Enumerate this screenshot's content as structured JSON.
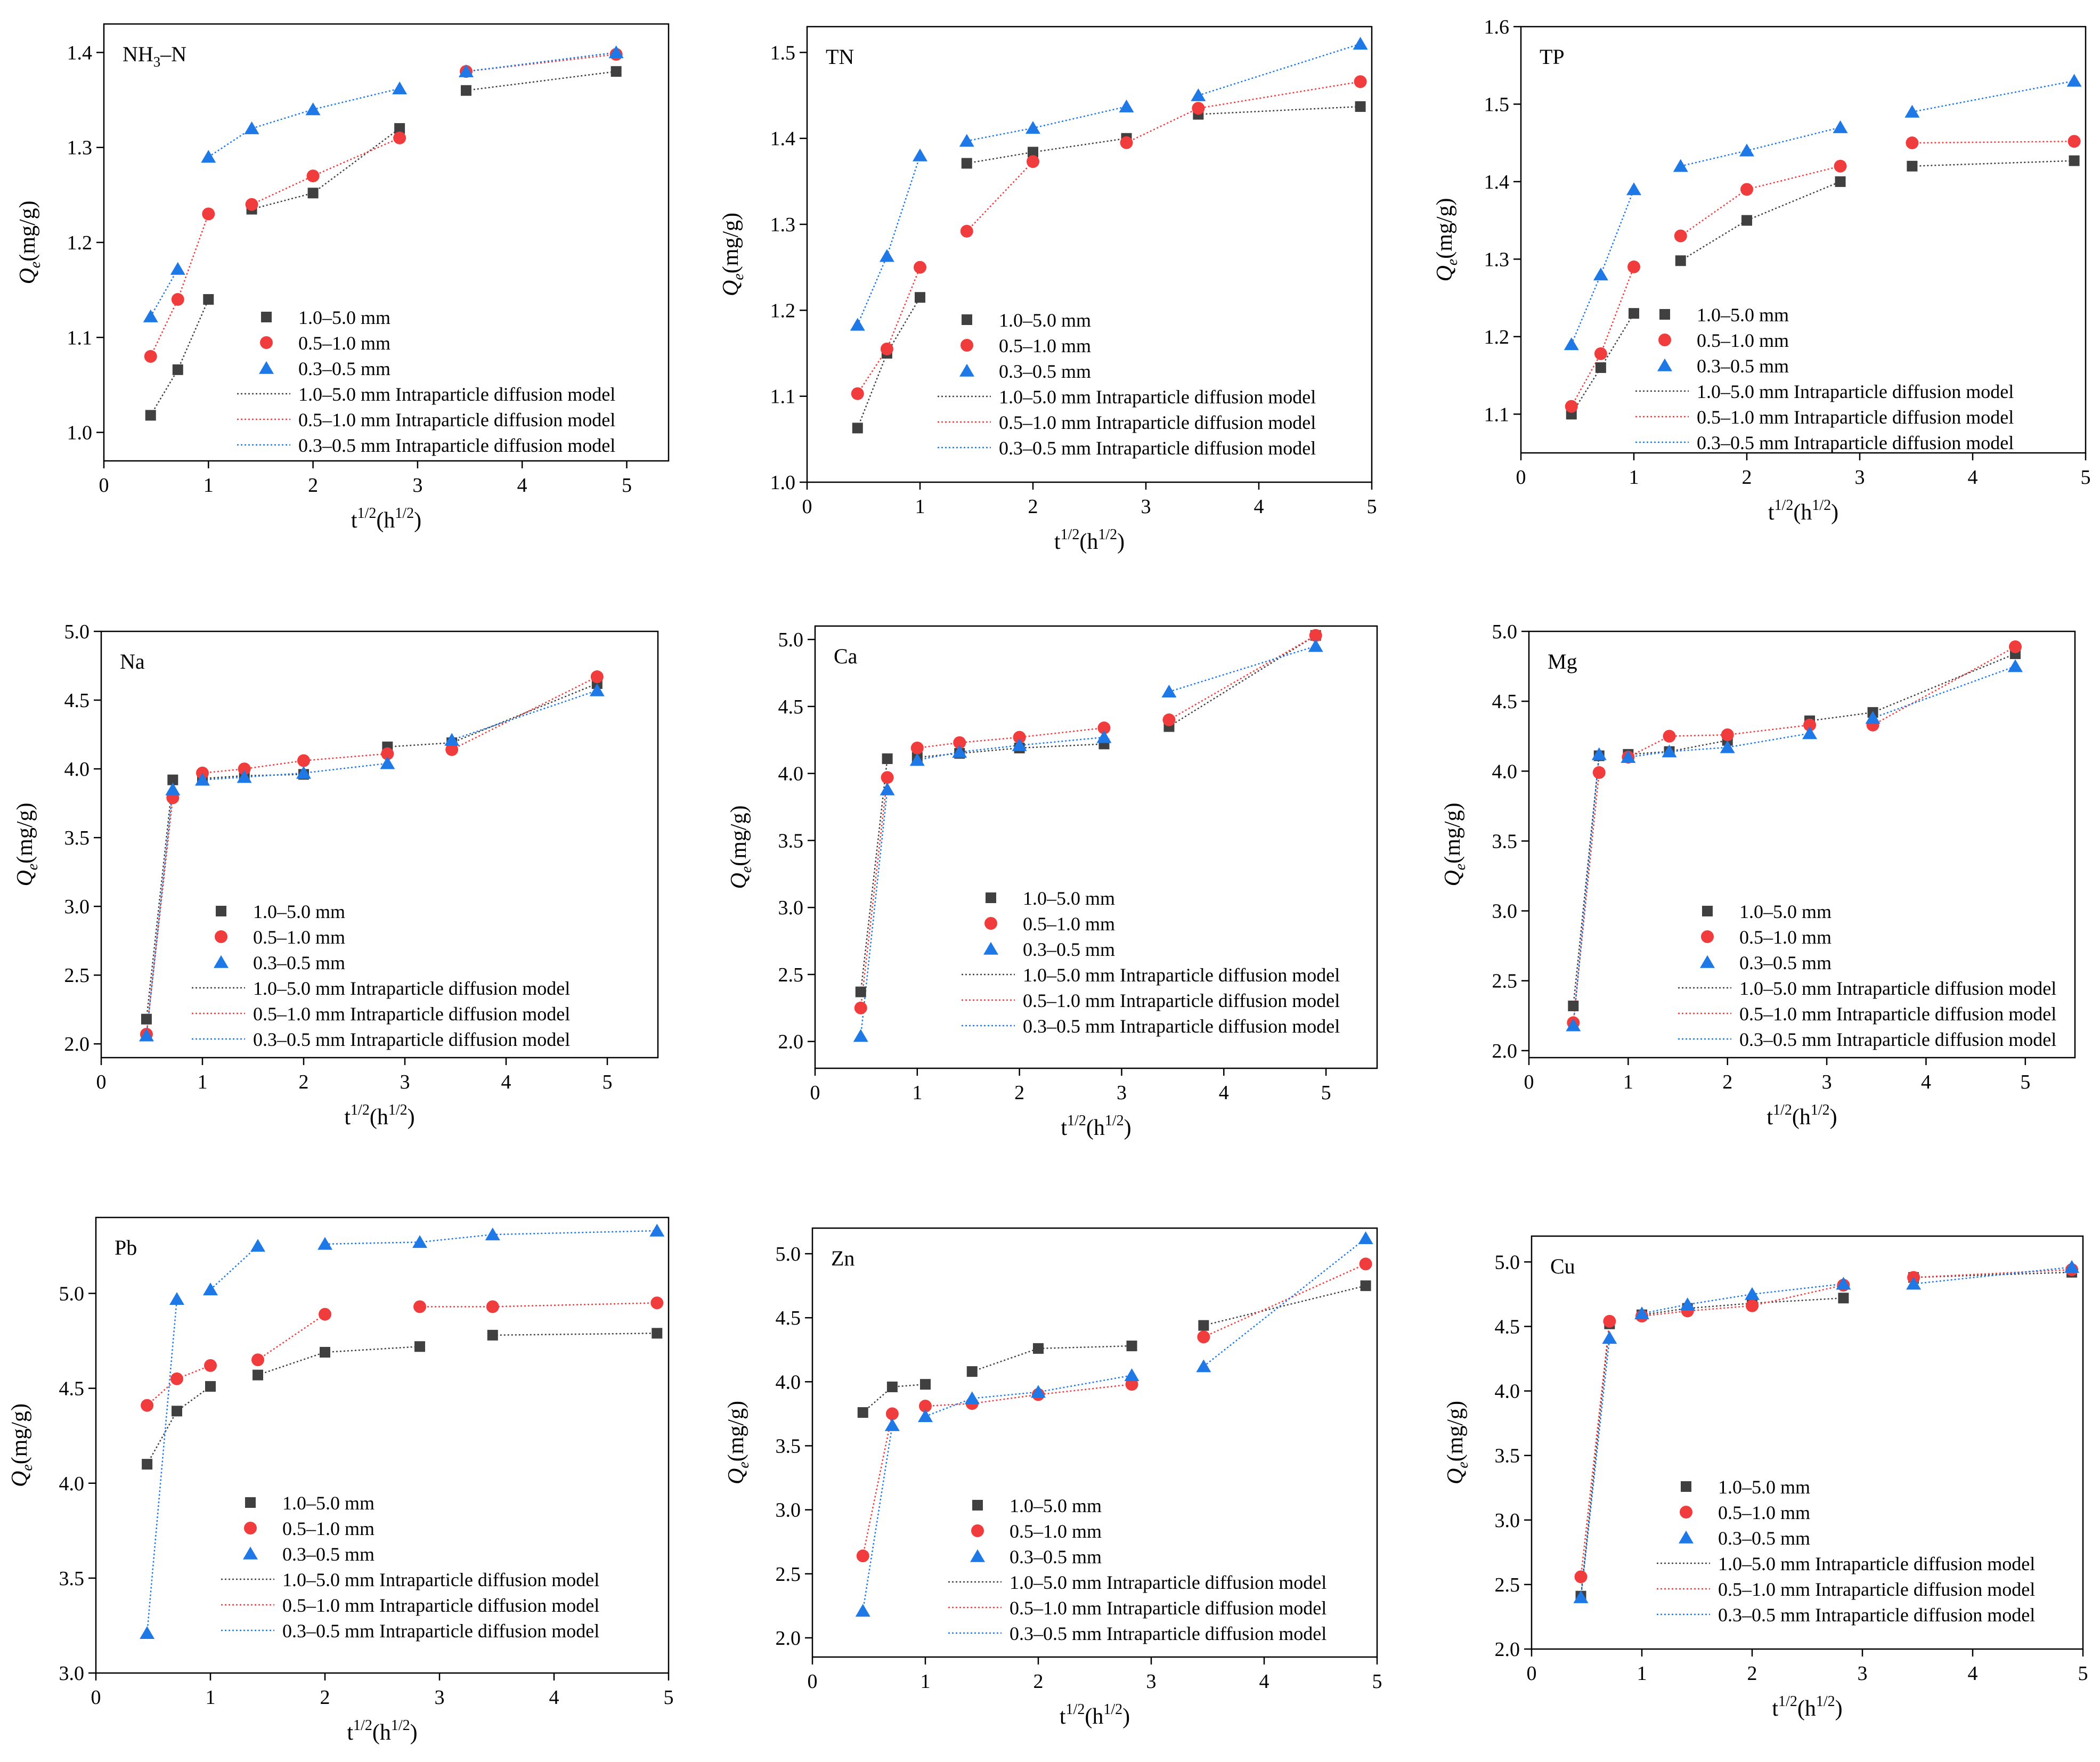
{
  "figure": {
    "colors": {
      "s1": "#404040",
      "s2": "#f03c3c",
      "s3": "#1e78e6",
      "axis": "#000000"
    },
    "axis_text": {
      "y_label_main": "Q",
      "y_label_sub": "e",
      "y_label_unit": "(mg/g)",
      "x_label_main": "t",
      "x_label_sup": "1/2",
      "x_label_mid": "(h",
      "x_label_sup2": "1/2",
      "x_label_end": ")"
    },
    "legend": {
      "markers": [
        "1.0–5.0 mm",
        "0.5–1.0 mm",
        "0.3–0.5 mm"
      ],
      "lines": [
        "1.0–5.0 mm Intraparticle diffusion model",
        "0.5–1.0 mm Intraparticle diffusion model",
        "0.3–0.5 mm Intraparticle diffusion model"
      ]
    }
  },
  "chart_data": [
    {
      "type": "scatter",
      "title": "NH3–N",
      "title_parts": {
        "main": "NH",
        "sub": "3",
        "rest": "–N"
      },
      "xlabel": "t1/2(h1/2)",
      "ylabel": "Qe(mg/g)",
      "xlim": [
        0,
        5.4
      ],
      "ylim": [
        0.97,
        1.43
      ],
      "xticks": [
        "0",
        "1",
        "2",
        "3",
        "4",
        "5"
      ],
      "yticks": [
        "1.0",
        "1.1",
        "1.2",
        "1.3",
        "1.4"
      ],
      "x": [
        0.447,
        0.707,
        1.0,
        1.414,
        2.0,
        2.828,
        3.464,
        4.899
      ],
      "series": [
        {
          "name": "1.0–5.0 mm",
          "marker": "square",
          "values": [
            1.018,
            1.066,
            1.14,
            1.235,
            1.252,
            1.32,
            1.36,
            1.38
          ],
          "segments": [
            [
              0,
              3
            ],
            [
              3,
              6
            ],
            [
              6,
              8
            ]
          ]
        },
        {
          "name": "0.5–1.0 mm",
          "marker": "circle",
          "values": [
            1.08,
            1.14,
            1.23,
            1.24,
            1.27,
            1.31,
            1.38,
            1.398
          ],
          "segments": [
            [
              0,
              3
            ],
            [
              3,
              6
            ],
            [
              6,
              8
            ]
          ]
        },
        {
          "name": "0.3–0.5 mm",
          "marker": "triangle",
          "values": [
            1.122,
            1.172,
            1.29,
            1.32,
            1.34,
            1.362,
            1.38,
            1.4
          ],
          "segments": [
            [
              0,
              2
            ],
            [
              2,
              6
            ],
            [
              6,
              8
            ]
          ]
        }
      ]
    },
    {
      "type": "scatter",
      "title": "TN",
      "xlabel": "t1/2(h1/2)",
      "ylabel": "Qe(mg/g)",
      "xlim": [
        0,
        5.0
      ],
      "ylim": [
        1.0,
        1.53
      ],
      "xticks": [
        "0",
        "1",
        "2",
        "3",
        "4",
        "5"
      ],
      "yticks": [
        "1.0",
        "1.1",
        "1.2",
        "1.3",
        "1.4",
        "1.5"
      ],
      "x": [
        0.447,
        0.707,
        1.0,
        1.414,
        2.0,
        2.828,
        3.464,
        4.899
      ],
      "series": [
        {
          "name": "1.0–5.0 mm",
          "marker": "square",
          "values": [
            1.063,
            1.15,
            1.215,
            1.371,
            1.384,
            1.4,
            1.428,
            1.437
          ],
          "segments": [
            [
              0,
              3
            ],
            [
              3,
              6
            ],
            [
              6,
              8
            ]
          ]
        },
        {
          "name": "0.5–1.0 mm",
          "marker": "circle",
          "values": [
            1.103,
            1.155,
            1.25,
            1.292,
            1.373,
            1.395,
            1.435,
            1.466
          ],
          "segments": [
            [
              0,
              3
            ],
            [
              3,
              5
            ],
            [
              5,
              8
            ]
          ]
        },
        {
          "name": "0.3–0.5 mm",
          "marker": "triangle",
          "values": [
            1.183,
            1.263,
            1.38,
            1.397,
            1.412,
            1.437,
            1.45,
            1.51
          ],
          "segments": [
            [
              0,
              3
            ],
            [
              3,
              6
            ],
            [
              6,
              8
            ]
          ]
        }
      ]
    },
    {
      "type": "scatter",
      "title": "TP",
      "xlabel": "t1/2(h1/2)",
      "ylabel": "Qe(mg/g)",
      "xlim": [
        0,
        5.0
      ],
      "ylim": [
        1.05,
        1.6
      ],
      "xticks": [
        "0",
        "1",
        "2",
        "3",
        "4",
        "5"
      ],
      "yticks": [
        "1.1",
        "1.2",
        "1.3",
        "1.4",
        "1.5",
        "1.6"
      ],
      "x": [
        0.447,
        0.707,
        1.0,
        1.414,
        2.0,
        2.828,
        3.464,
        4.899
      ],
      "series": [
        {
          "name": "1.0–5.0 mm",
          "marker": "square",
          "values": [
            1.1,
            1.16,
            1.23,
            1.298,
            1.35,
            1.4,
            1.42,
            1.427
          ],
          "segments": [
            [
              0,
              3
            ],
            [
              3,
              6
            ],
            [
              6,
              8
            ]
          ]
        },
        {
          "name": "0.5–1.0 mm",
          "marker": "circle",
          "values": [
            1.11,
            1.178,
            1.29,
            1.33,
            1.39,
            1.42,
            1.45,
            1.452
          ],
          "segments": [
            [
              0,
              3
            ],
            [
              3,
              6
            ],
            [
              6,
              8
            ]
          ]
        },
        {
          "name": "0.3–0.5 mm",
          "marker": "triangle",
          "values": [
            1.19,
            1.28,
            1.39,
            1.42,
            1.44,
            1.47,
            1.49,
            1.53
          ],
          "segments": [
            [
              0,
              3
            ],
            [
              3,
              6
            ],
            [
              6,
              8
            ]
          ]
        }
      ]
    },
    {
      "type": "scatter",
      "title": "Na",
      "xlabel": "t1/2(h1/2)",
      "ylabel": "Qe(mg/g)",
      "xlim": [
        0,
        5.5
      ],
      "ylim": [
        1.9,
        5.0
      ],
      "xticks": [
        "0",
        "1",
        "2",
        "3",
        "4",
        "5"
      ],
      "yticks": [
        "2.0",
        "2.5",
        "3.0",
        "3.5",
        "4.0",
        "4.5",
        "5.0"
      ],
      "x": [
        0.447,
        0.707,
        1.0,
        1.414,
        2.0,
        2.828,
        3.464,
        4.899
      ],
      "series": [
        {
          "name": "1.0–5.0 mm",
          "marker": "square",
          "values": [
            2.18,
            3.92,
            3.93,
            3.95,
            3.96,
            4.16,
            4.19,
            4.62
          ],
          "segments": [
            [
              0,
              2
            ],
            [
              2,
              5
            ],
            [
              5,
              8
            ]
          ]
        },
        {
          "name": "0.5–1.0 mm",
          "marker": "circle",
          "values": [
            2.07,
            3.79,
            3.97,
            4.0,
            4.06,
            4.11,
            4.14,
            4.67
          ],
          "segments": [
            [
              0,
              2
            ],
            [
              2,
              6
            ],
            [
              6,
              8
            ]
          ]
        },
        {
          "name": "0.3–0.5 mm",
          "marker": "triangle",
          "values": [
            2.06,
            3.85,
            3.92,
            3.94,
            3.97,
            4.04,
            4.21,
            4.57
          ],
          "segments": [
            [
              0,
              2
            ],
            [
              2,
              6
            ],
            [
              6,
              8
            ]
          ]
        }
      ]
    },
    {
      "type": "scatter",
      "title": "Ca",
      "xlabel": "t1/2(h1/2)",
      "ylabel": "Qe(mg/g)",
      "xlim": [
        0,
        5.5
      ],
      "ylim": [
        1.8,
        5.1
      ],
      "xticks": [
        "0",
        "1",
        "2",
        "3",
        "4",
        "5"
      ],
      "yticks": [
        "2.0",
        "2.5",
        "3.0",
        "3.5",
        "4.0",
        "4.5",
        "5.0"
      ],
      "x": [
        0.447,
        0.707,
        1.0,
        1.414,
        2.0,
        2.828,
        3.464,
        4.899
      ],
      "series": [
        {
          "name": "1.0–5.0 mm",
          "marker": "square",
          "values": [
            2.37,
            4.11,
            4.12,
            4.15,
            4.19,
            4.22,
            4.35,
            5.03
          ],
          "segments": [
            [
              0,
              2
            ],
            [
              2,
              6
            ],
            [
              6,
              8
            ]
          ]
        },
        {
          "name": "0.5–1.0 mm",
          "marker": "circle",
          "values": [
            2.25,
            3.97,
            4.19,
            4.23,
            4.27,
            4.34,
            4.4,
            5.03
          ],
          "segments": [
            [
              0,
              2
            ],
            [
              2,
              6
            ],
            [
              6,
              8
            ]
          ]
        },
        {
          "name": "0.3–0.5 mm",
          "marker": "triangle",
          "values": [
            2.04,
            3.88,
            4.1,
            4.16,
            4.21,
            4.27,
            4.61,
            4.95
          ],
          "segments": [
            [
              0,
              2
            ],
            [
              2,
              6
            ],
            [
              6,
              8
            ]
          ]
        }
      ]
    },
    {
      "type": "scatter",
      "title": "Mg",
      "xlabel": "t1/2(h1/2)",
      "ylabel": "Qe(mg/g)",
      "xlim": [
        0,
        5.5
      ],
      "ylim": [
        1.95,
        5.0
      ],
      "xticks": [
        "0",
        "1",
        "2",
        "3",
        "4",
        "5"
      ],
      "yticks": [
        "2.0",
        "2.5",
        "3.0",
        "3.5",
        "4.0",
        "4.5",
        "5.0"
      ],
      "x": [
        0.447,
        0.707,
        1.0,
        1.414,
        2.0,
        2.828,
        3.464,
        4.899
      ],
      "series": [
        {
          "name": "1.0–5.0 mm",
          "marker": "square",
          "values": [
            2.32,
            4.11,
            4.12,
            4.14,
            4.22,
            4.36,
            4.42,
            4.84
          ],
          "segments": [
            [
              0,
              2
            ],
            [
              2,
              5
            ],
            [
              5,
              8
            ]
          ]
        },
        {
          "name": "0.5–1.0 mm",
          "marker": "circle",
          "values": [
            2.2,
            3.99,
            4.1,
            4.25,
            4.26,
            4.33,
            4.33,
            4.89
          ],
          "segments": [
            [
              0,
              2
            ],
            [
              2,
              6
            ],
            [
              6,
              8
            ]
          ]
        },
        {
          "name": "0.3–0.5 mm",
          "marker": "triangle",
          "values": [
            2.18,
            4.12,
            4.1,
            4.14,
            4.17,
            4.27,
            4.38,
            4.75
          ],
          "segments": [
            [
              0,
              2
            ],
            [
              2,
              6
            ],
            [
              6,
              8
            ]
          ]
        }
      ]
    },
    {
      "type": "scatter",
      "title": "Pb",
      "xlabel": "t1/2(h1/2)",
      "ylabel": "Qe(mg/g)",
      "xlim": [
        0,
        5.0
      ],
      "ylim": [
        3.0,
        5.4
      ],
      "xticks": [
        "0",
        "1",
        "2",
        "3",
        "4",
        "5"
      ],
      "yticks": [
        "3.0",
        "3.5",
        "4.0",
        "4.5",
        "5.0"
      ],
      "x": [
        0.447,
        0.707,
        1.0,
        1.414,
        2.0,
        2.828,
        3.464,
        4.899
      ],
      "series": [
        {
          "name": "1.0–5.0 mm",
          "marker": "square",
          "values": [
            4.1,
            4.38,
            4.51,
            4.57,
            4.69,
            4.72,
            4.78,
            4.79
          ],
          "segments": [
            [
              0,
              3
            ],
            [
              3,
              6
            ],
            [
              6,
              8
            ]
          ]
        },
        {
          "name": "0.5–1.0 mm",
          "marker": "circle",
          "values": [
            4.41,
            4.55,
            4.62,
            4.65,
            4.89,
            4.93,
            4.93,
            4.95
          ],
          "segments": [
            [
              0,
              3
            ],
            [
              3,
              5
            ],
            [
              5,
              8
            ]
          ]
        },
        {
          "name": "0.3–0.5 mm",
          "marker": "triangle",
          "values": [
            3.21,
            4.97,
            5.02,
            5.25,
            5.26,
            5.27,
            5.31,
            5.33
          ],
          "segments": [
            [
              0,
              2
            ],
            [
              2,
              4
            ],
            [
              4,
              8
            ]
          ]
        }
      ]
    },
    {
      "type": "scatter",
      "title": "Zn",
      "xlabel": "t1/2(h1/2)",
      "ylabel": "Qe(mg/g)",
      "xlim": [
        0,
        5.0
      ],
      "ylim": [
        1.85,
        5.2
      ],
      "xticks": [
        "0",
        "1",
        "2",
        "3",
        "4",
        "5"
      ],
      "yticks": [
        "2.0",
        "2.5",
        "3.0",
        "3.5",
        "4.0",
        "4.5",
        "5.0"
      ],
      "x": [
        0.447,
        0.707,
        1.0,
        1.414,
        2.0,
        2.828,
        3.464,
        4.899
      ],
      "series": [
        {
          "name": "1.0–5.0 mm",
          "marker": "square",
          "values": [
            3.76,
            3.96,
            3.98,
            4.08,
            4.26,
            4.28,
            4.44,
            4.75
          ],
          "segments": [
            [
              0,
              3
            ],
            [
              3,
              6
            ],
            [
              6,
              8
            ]
          ]
        },
        {
          "name": "0.5–1.0 mm",
          "marker": "circle",
          "values": [
            2.64,
            3.75,
            3.81,
            3.83,
            3.9,
            3.98,
            4.35,
            4.92
          ],
          "segments": [
            [
              0,
              2
            ],
            [
              2,
              6
            ],
            [
              6,
              8
            ]
          ]
        },
        {
          "name": "0.3–0.5 mm",
          "marker": "triangle",
          "values": [
            2.21,
            3.66,
            3.73,
            3.87,
            3.92,
            4.05,
            4.12,
            5.12
          ],
          "segments": [
            [
              0,
              2
            ],
            [
              2,
              6
            ],
            [
              6,
              8
            ]
          ]
        }
      ]
    },
    {
      "type": "scatter",
      "title": "Cu",
      "xlabel": "t1/2(h1/2)",
      "ylabel": "Qe(mg/g)",
      "xlim": [
        0,
        5.0
      ],
      "ylim": [
        2.0,
        5.2
      ],
      "xticks": [
        "0",
        "1",
        "2",
        "3",
        "4",
        "5"
      ],
      "yticks": [
        "2.0",
        "2.5",
        "3.0",
        "3.5",
        "4.0",
        "4.5",
        "5.0"
      ],
      "x": [
        0.447,
        0.707,
        1.0,
        1.414,
        2.0,
        2.828,
        3.464,
        4.899
      ],
      "series": [
        {
          "name": "1.0–5.0 mm",
          "marker": "square",
          "values": [
            2.41,
            4.52,
            4.59,
            4.64,
            4.68,
            4.72,
            4.88,
            4.92
          ],
          "segments": [
            [
              0,
              2
            ],
            [
              2,
              6
            ],
            [
              6,
              8
            ]
          ]
        },
        {
          "name": "0.5–1.0 mm",
          "marker": "circle",
          "values": [
            2.56,
            4.54,
            4.58,
            4.62,
            4.66,
            4.82,
            4.88,
            4.94
          ],
          "segments": [
            [
              0,
              2
            ],
            [
              2,
              6
            ],
            [
              6,
              8
            ]
          ]
        },
        {
          "name": "0.3–0.5 mm",
          "marker": "triangle",
          "values": [
            2.4,
            4.41,
            4.6,
            4.67,
            4.75,
            4.83,
            4.83,
            4.96
          ],
          "segments": [
            [
              0,
              2
            ],
            [
              2,
              6
            ],
            [
              6,
              8
            ]
          ]
        }
      ]
    }
  ]
}
